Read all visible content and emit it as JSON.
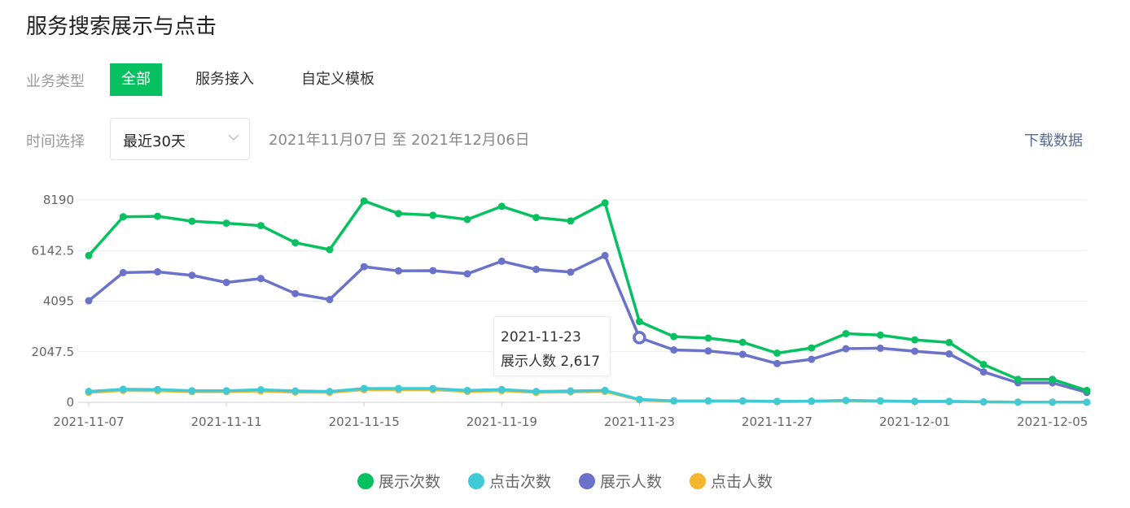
{
  "page": {
    "title": "服务搜索展示与点击"
  },
  "filters": {
    "biz_type_label": "业务类型",
    "tabs": [
      "全部",
      "服务接入",
      "自定义模板"
    ],
    "time_label": "时间选择",
    "time_select_value": "最近30天",
    "date_range": "2021年11月07日 至 2021年12月06日",
    "download_label": "下载数据"
  },
  "tooltip": {
    "date": "2021-11-23",
    "line": "展示人数 2,617"
  },
  "colors": {
    "accent": "#07c160",
    "link": "#576b95"
  },
  "chart_data": {
    "type": "line",
    "x": [
      "2021-11-07",
      "2021-11-08",
      "2021-11-09",
      "2021-11-10",
      "2021-11-11",
      "2021-11-12",
      "2021-11-13",
      "2021-11-14",
      "2021-11-15",
      "2021-11-16",
      "2021-11-17",
      "2021-11-18",
      "2021-11-19",
      "2021-11-20",
      "2021-11-21",
      "2021-11-22",
      "2021-11-23",
      "2021-11-24",
      "2021-11-25",
      "2021-11-26",
      "2021-11-27",
      "2021-11-28",
      "2021-11-29",
      "2021-11-30",
      "2021-12-01",
      "2021-12-02",
      "2021-12-03",
      "2021-12-04",
      "2021-12-05",
      "2021-12-06"
    ],
    "x_tick_labels": [
      "2021-11-07",
      "2021-11-11",
      "2021-11-15",
      "2021-11-19",
      "2021-11-23",
      "2021-11-27",
      "2021-12-01",
      "2021-12-05"
    ],
    "y_ticks": [
      "0",
      "2047.5",
      "4095",
      "6142.5",
      "8190"
    ],
    "ylim": [
      0,
      8190
    ],
    "grid": true,
    "legend_position": "bottom",
    "series": [
      {
        "name": "展示次数",
        "color": "#07c160",
        "values": [
          5940,
          7510,
          7530,
          7330,
          7250,
          7150,
          6460,
          6180,
          8150,
          7640,
          7570,
          7400,
          7930,
          7480,
          7340,
          8070,
          3270,
          2660,
          2600,
          2430,
          1990,
          2200,
          2780,
          2720,
          2530,
          2420,
          1530,
          930,
          930,
          480
        ]
      },
      {
        "name": "点击次数",
        "color": "#3fcad6",
        "values": [
          440,
          530,
          520,
          470,
          470,
          510,
          460,
          440,
          560,
          560,
          560,
          480,
          520,
          440,
          460,
          480,
          120,
          60,
          60,
          60,
          40,
          50,
          80,
          60,
          40,
          40,
          20,
          10,
          10,
          5
        ]
      },
      {
        "name": "展示人数",
        "color": "#6a72c9",
        "values": [
          4110,
          5250,
          5280,
          5140,
          4850,
          5010,
          4400,
          4160,
          5490,
          5320,
          5330,
          5200,
          5710,
          5380,
          5270,
          5940,
          2617,
          2120,
          2080,
          1940,
          1570,
          1740,
          2170,
          2190,
          2070,
          1960,
          1230,
          790,
          790,
          400
        ]
      },
      {
        "name": "点击人数",
        "color": "#f5b62f",
        "values": [
          400,
          480,
          470,
          430,
          430,
          460,
          410,
          400,
          510,
          510,
          510,
          440,
          470,
          400,
          420,
          440,
          100,
          50,
          50,
          50,
          30,
          40,
          70,
          50,
          30,
          30,
          15,
          8,
          8,
          4
        ]
      }
    ],
    "highlight": {
      "series": "展示人数",
      "x": "2021-11-23",
      "value": 2617
    }
  }
}
